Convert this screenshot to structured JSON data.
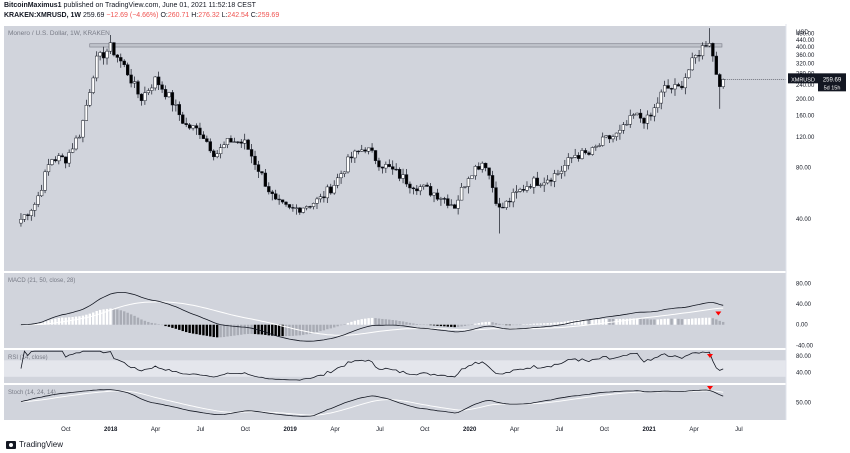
{
  "header": {
    "publisher": "BitcoinMaximus1",
    "published_text": "published on TradingView.com, June 01, 2021 11:52:18 CEST",
    "symbol": "KRAKEN:XMRUSD, 1W",
    "price": "259.69",
    "change": "−12.69 (−4.66%)",
    "o_label": "O:",
    "o_val": "260.71",
    "h_label": "H:",
    "h_val": "276.32",
    "l_label": "L:",
    "l_val": "242.54",
    "c_label": "C:",
    "c_val": "259.69"
  },
  "footer": {
    "brand": "TradingView"
  },
  "colors": {
    "background": "#ffffff",
    "pane": "#d1d4dc",
    "candle_up": "#ffffff",
    "candle_down": "#000000",
    "wick": "#131722",
    "line": "#131722",
    "signal": "#ffffff",
    "hist_pos": "#ffffff",
    "hist_neg": "#000000",
    "hist_fade": "#a9acb5",
    "marker": "#ff0000",
    "rsi_band": "#e4e6ec",
    "resistance": "#b2b5be"
  },
  "chart_data": [
    {
      "type": "candlestick",
      "title": "Monero / U.S. Dollar, 1W, KRAKEN",
      "y_unit": "USD",
      "ylim": [
        20,
        530
      ],
      "y_ticks": [
        40.0,
        80.0,
        120.0,
        160.0,
        200.0,
        240.0,
        280.0,
        320.0,
        360.0,
        400.0,
        440.0,
        480.0
      ],
      "x_ticks": [
        "Oct",
        "2018",
        "Apr",
        "Jul",
        "Oct",
        "2019",
        "Apr",
        "Jul",
        "Oct",
        "2020",
        "Apr",
        "Jul",
        "Oct",
        "2021",
        "Apr",
        "Jul"
      ],
      "resistance_zone": [
        400,
        418
      ],
      "last_price_label": {
        "symbol": "XMRUSD",
        "price": "259.69",
        "countdown": "5d 15h"
      },
      "keypoints": [
        {
          "date": "2017-07",
          "close": 40
        },
        {
          "date": "2017-08",
          "close": 50
        },
        {
          "date": "2017-09",
          "close": 90
        },
        {
          "date": "2017-10",
          "close": 90
        },
        {
          "date": "2017-11",
          "close": 130
        },
        {
          "date": "2017-12",
          "close": 330
        },
        {
          "date": "2018-01",
          "close": 400
        },
        {
          "date": "2018-02",
          "close": 300
        },
        {
          "date": "2018-03",
          "close": 200
        },
        {
          "date": "2018-04",
          "close": 260
        },
        {
          "date": "2018-05",
          "close": 200
        },
        {
          "date": "2018-06",
          "close": 140
        },
        {
          "date": "2018-07",
          "close": 130
        },
        {
          "date": "2018-08",
          "close": 95
        },
        {
          "date": "2018-09",
          "close": 115
        },
        {
          "date": "2018-10",
          "close": 110
        },
        {
          "date": "2018-11",
          "close": 75
        },
        {
          "date": "2018-12",
          "close": 50
        },
        {
          "date": "2019-01",
          "close": 45
        },
        {
          "date": "2019-02",
          "close": 48
        },
        {
          "date": "2019-03",
          "close": 52
        },
        {
          "date": "2019-04",
          "close": 65
        },
        {
          "date": "2019-05",
          "close": 90
        },
        {
          "date": "2019-06",
          "close": 105
        },
        {
          "date": "2019-07",
          "close": 85
        },
        {
          "date": "2019-08",
          "close": 75
        },
        {
          "date": "2019-09",
          "close": 65
        },
        {
          "date": "2019-10",
          "close": 60
        },
        {
          "date": "2019-11",
          "close": 55
        },
        {
          "date": "2019-12",
          "close": 48
        },
        {
          "date": "2020-01",
          "close": 75
        },
        {
          "date": "2020-02",
          "close": 88
        },
        {
          "date": "2020-03",
          "close": 45
        },
        {
          "date": "2020-04",
          "close": 55
        },
        {
          "date": "2020-05",
          "close": 65
        },
        {
          "date": "2020-06",
          "close": 68
        },
        {
          "date": "2020-07",
          "close": 75
        },
        {
          "date": "2020-08",
          "close": 95
        },
        {
          "date": "2020-09",
          "close": 95
        },
        {
          "date": "2020-10",
          "close": 115
        },
        {
          "date": "2020-11",
          "close": 125
        },
        {
          "date": "2020-12",
          "close": 160
        },
        {
          "date": "2021-01",
          "close": 150
        },
        {
          "date": "2021-02",
          "close": 230
        },
        {
          "date": "2021-03",
          "close": 230
        },
        {
          "date": "2021-04",
          "close": 340
        },
        {
          "date": "2021-05",
          "close": 450
        },
        {
          "date": "2021-05-20",
          "close": 250
        },
        {
          "date": "2021-06",
          "close": 259.69
        }
      ]
    },
    {
      "type": "line",
      "title": "MACD (21, 50, close, 28)",
      "ylim": [
        -45,
        100
      ],
      "y_ticks": [
        80.0,
        40.0,
        0.0,
        -40.0
      ],
      "series": [
        {
          "name": "MACD"
        },
        {
          "name": "Signal"
        },
        {
          "name": "Histogram"
        }
      ]
    },
    {
      "type": "line",
      "title": "RSI (14, close)",
      "ylim": [
        15,
        95
      ],
      "y_ticks": [
        80.0,
        40.0
      ],
      "series": [
        {
          "name": "RSI"
        }
      ]
    },
    {
      "type": "line",
      "title": "Stoch (14, 24, 14)",
      "ylim": [
        0,
        100
      ],
      "y_ticks": [
        50.0
      ],
      "series": [
        {
          "name": "%K"
        },
        {
          "name": "%D"
        }
      ]
    }
  ]
}
